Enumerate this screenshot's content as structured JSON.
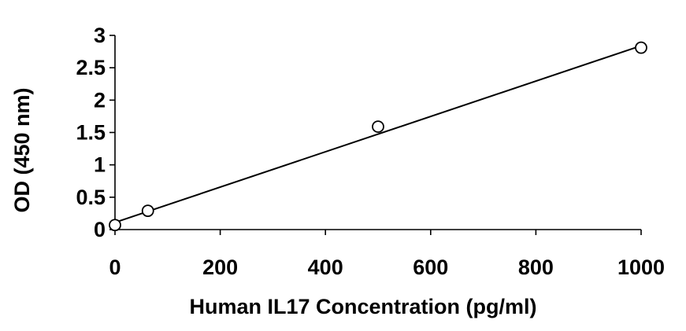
{
  "chart_data": {
    "type": "scatter",
    "title": "",
    "xlabel": "Human IL17 Concentration (pg/ml)",
    "ylabel": "OD (450 nm)",
    "xlim": [
      0,
      1000
    ],
    "ylim": [
      0,
      3
    ],
    "xticks": [
      0,
      200,
      400,
      600,
      800,
      1000
    ],
    "xtick_labels": [
      "0",
      "200",
      "400",
      "600",
      "800",
      "1000"
    ],
    "yticks": [
      0,
      0.5,
      1,
      1.5,
      2,
      2.5,
      3
    ],
    "ytick_labels": [
      "0",
      "0.5",
      "1",
      "1.5",
      "2",
      "2.5",
      "3"
    ],
    "grid": false,
    "legend": "none",
    "series": [
      {
        "x": [
          0,
          62.5,
          500,
          1000
        ],
        "y": [
          0.07,
          0.29,
          1.59,
          2.81
        ],
        "marker": "open-circle",
        "trendline": {
          "type": "linear",
          "x": [
            0,
            1000
          ],
          "y": [
            0.11,
            2.84
          ]
        }
      }
    ],
    "colors": {
      "line": "#000000",
      "marker_stroke": "#000000",
      "marker_fill": "#ffffff"
    }
  }
}
